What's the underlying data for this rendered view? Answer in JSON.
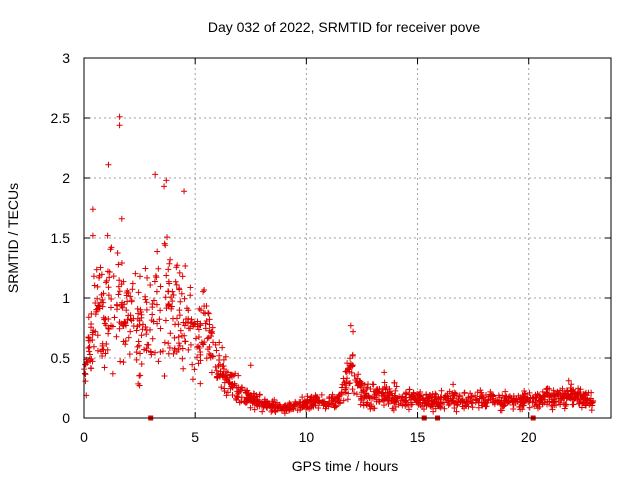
{
  "chart_data": {
    "type": "scatter",
    "title": "Day 032 of 2022, SRMTID for receiver pove",
    "xlabel": "GPS time / hours",
    "ylabel": "SRMTID / TECUs",
    "xlim": [
      0,
      23.7
    ],
    "ylim": [
      0,
      3
    ],
    "xticks": [
      "0",
      "5",
      "10",
      "15",
      "20"
    ],
    "xtick_values": [
      0,
      5,
      10,
      15,
      20
    ],
    "yticks": [
      "0",
      "0.5",
      "1",
      "1.5",
      "2",
      "2.5",
      "3"
    ],
    "ytick_values": [
      0,
      0.5,
      1,
      1.5,
      2,
      2.5,
      3
    ],
    "grid": true,
    "marker": "plus",
    "color": "#e00000",
    "envelope": {
      "description": "approximate trend of the scatter cloud (hours, TECU)",
      "hours": [
        0.0,
        0.5,
        1.0,
        1.5,
        2.0,
        2.5,
        3.0,
        3.5,
        4.0,
        4.5,
        5.0,
        5.5,
        6.0,
        6.5,
        7.0,
        7.5,
        8.0,
        8.5,
        9.0,
        9.5,
        10.0,
        10.5,
        11.0,
        11.5,
        12.0,
        12.5,
        13.0,
        13.5,
        14.0,
        14.5,
        15.0,
        15.5,
        16.0,
        16.5,
        17.0,
        17.5,
        18.0,
        18.5,
        19.0,
        19.5,
        20.0,
        20.5,
        21.0,
        21.5,
        22.0,
        22.5,
        22.9
      ],
      "center": [
        0.4,
        0.8,
        0.9,
        0.95,
        0.85,
        0.7,
        0.8,
        1.0,
        0.95,
        0.8,
        0.6,
        0.75,
        0.45,
        0.3,
        0.22,
        0.16,
        0.12,
        0.1,
        0.08,
        0.1,
        0.12,
        0.14,
        0.12,
        0.15,
        0.4,
        0.2,
        0.18,
        0.2,
        0.18,
        0.17,
        0.16,
        0.14,
        0.14,
        0.15,
        0.14,
        0.15,
        0.16,
        0.15,
        0.14,
        0.14,
        0.15,
        0.16,
        0.17,
        0.18,
        0.18,
        0.16,
        0.12
      ],
      "spread": [
        0.2,
        0.3,
        0.35,
        0.35,
        0.35,
        0.3,
        0.4,
        0.45,
        0.4,
        0.35,
        0.25,
        0.25,
        0.15,
        0.1,
        0.08,
        0.06,
        0.05,
        0.04,
        0.03,
        0.04,
        0.05,
        0.05,
        0.05,
        0.06,
        0.15,
        0.08,
        0.07,
        0.08,
        0.07,
        0.06,
        0.06,
        0.05,
        0.05,
        0.05,
        0.05,
        0.05,
        0.05,
        0.05,
        0.05,
        0.05,
        0.05,
        0.06,
        0.06,
        0.07,
        0.07,
        0.06,
        0.05
      ],
      "count": 1400
    },
    "outliers": [
      {
        "x": 1.6,
        "y": 2.51
      },
      {
        "x": 1.6,
        "y": 2.44
      },
      {
        "x": 1.1,
        "y": 2.11
      },
      {
        "x": 3.2,
        "y": 2.03
      },
      {
        "x": 3.7,
        "y": 1.98
      },
      {
        "x": 3.6,
        "y": 1.93
      },
      {
        "x": 4.5,
        "y": 1.89
      },
      {
        "x": 0.4,
        "y": 1.74
      },
      {
        "x": 0.4,
        "y": 1.52
      },
      {
        "x": 1.7,
        "y": 1.66
      },
      {
        "x": 12.0,
        "y": 0.77
      },
      {
        "x": 12.1,
        "y": 0.72
      },
      {
        "x": 7.5,
        "y": 0.44
      },
      {
        "x": 16.6,
        "y": 0.28
      },
      {
        "x": 21.8,
        "y": 0.31
      },
      {
        "x": 13.5,
        "y": 0.38
      }
    ],
    "zero_markers": [
      3.0,
      15.3,
      15.9,
      20.2
    ]
  }
}
